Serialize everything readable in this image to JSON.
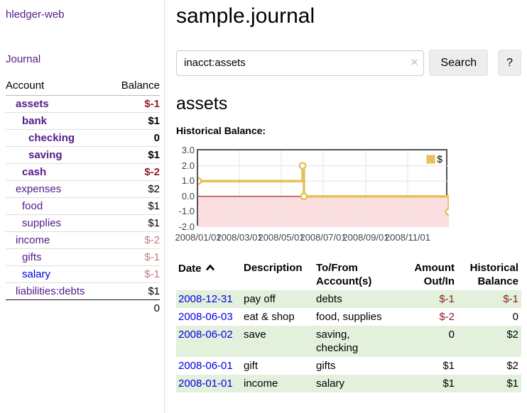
{
  "colors": {
    "link_visited_purple": "#551a8b",
    "link_blue": "#0000e6",
    "negative_dark_red": "#8f2026",
    "negative_light_red": "#c47a80",
    "row_green": "#e2f0dc",
    "chart_line_gold": "#e6c157",
    "chart_negative_fill": "#fbdee0",
    "chart_zero_line": "#8b0000",
    "chart_grid": "#e3e3e3"
  },
  "sidebar": {
    "brand": "hledger-web",
    "nav": {
      "journal": "Journal"
    },
    "accounts": {
      "header_account": "Account",
      "header_balance": "Balance",
      "rows": [
        {
          "name": "assets",
          "balance": "$-1"
        },
        {
          "name": "bank",
          "balance": "$1"
        },
        {
          "name": "checking",
          "balance": "0"
        },
        {
          "name": "saving",
          "balance": "$1"
        },
        {
          "name": "cash",
          "balance": "$-2"
        },
        {
          "name": "expenses",
          "balance": "$2"
        },
        {
          "name": "food",
          "balance": "$1"
        },
        {
          "name": "supplies",
          "balance": "$1"
        },
        {
          "name": "income",
          "balance": "$-2"
        },
        {
          "name": "gifts",
          "balance": "$-1"
        },
        {
          "name": "salary",
          "balance": "$-1"
        },
        {
          "name": "liabilities:debts",
          "balance": "$1"
        }
      ],
      "total": "0"
    }
  },
  "main": {
    "title": "sample.journal",
    "search": {
      "value": "inacct:assets",
      "clear_icon": "×",
      "search_button": "Search",
      "help_button": "?"
    },
    "account_heading": "assets",
    "section_label": "Historical Balance:"
  },
  "chart_data": {
    "type": "line",
    "step": true,
    "title": "Historical Balance of assets",
    "series": [
      {
        "name": "$",
        "points": [
          [
            "2008-01-01",
            1
          ],
          [
            "2008-06-01",
            2
          ],
          [
            "2008-06-03",
            0
          ],
          [
            "2008-12-31",
            -1
          ]
        ]
      }
    ],
    "x_range": [
      "2008-01-01",
      "2008-12-31"
    ],
    "ylim": [
      -2,
      3
    ],
    "y_ticks": [
      3.0,
      2.0,
      1.0,
      0.0,
      -1.0,
      -2.0
    ],
    "x_tick_labels": [
      "2008/01/01",
      "2008/03/01",
      "2008/05/01",
      "2008/07/01",
      "2008/09/01",
      "2008/11/01"
    ],
    "legend": {
      "label": "$",
      "position": "top-right"
    },
    "grid": true,
    "negative_region_shaded": true
  },
  "register": {
    "headers": {
      "date": "Date",
      "description": "Description",
      "accounts": "To/From Account(s)",
      "amount": "Amount Out/In",
      "balance": "Historical Balance"
    },
    "rows": [
      {
        "date": "2008-12-31",
        "description": "pay off",
        "accounts": "debts",
        "amount": "$-1",
        "balance": "$-1"
      },
      {
        "date": "2008-06-03",
        "description": "eat & shop",
        "accounts": "food, supplies",
        "amount": "$-2",
        "balance": "0"
      },
      {
        "date": "2008-06-02",
        "description": "save",
        "accounts": "saving,\nchecking",
        "amount": "0",
        "balance": "$2"
      },
      {
        "date": "2008-06-01",
        "description": "gift",
        "accounts": "gifts",
        "amount": "$1",
        "balance": "$2"
      },
      {
        "date": "2008-01-01",
        "description": "income",
        "accounts": "salary",
        "amount": "$1",
        "balance": "$1"
      }
    ]
  }
}
